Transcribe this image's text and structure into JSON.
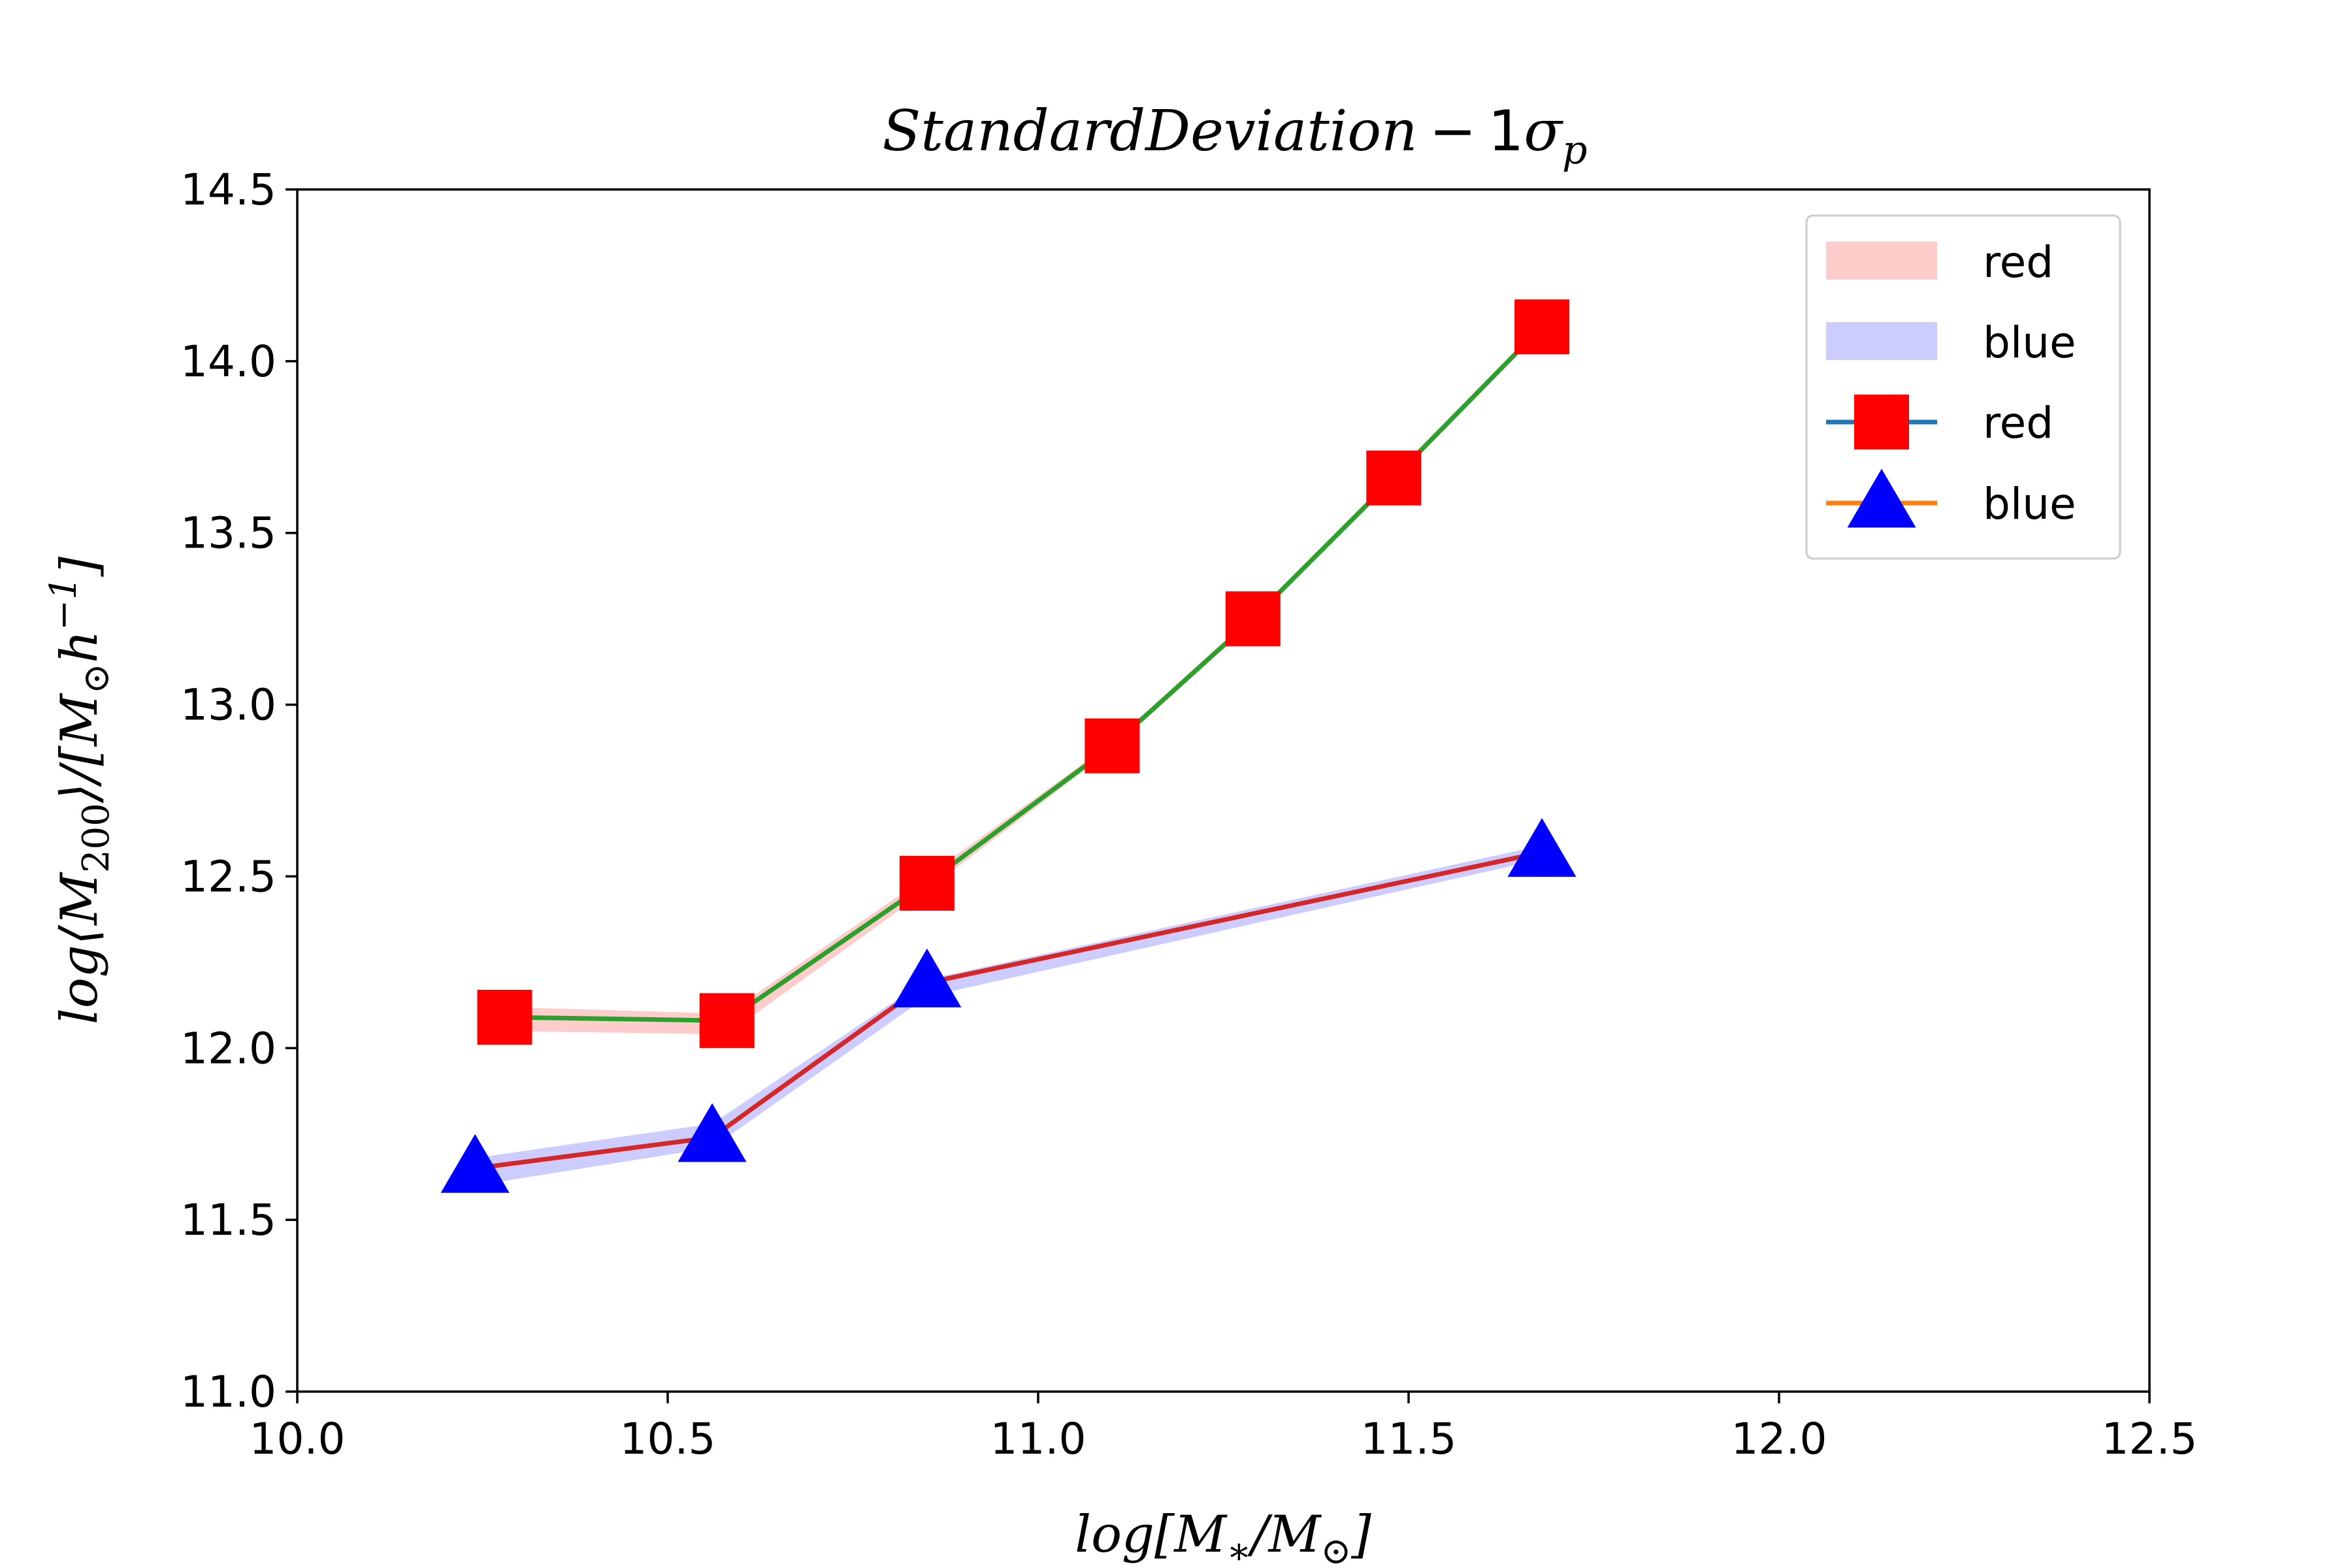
{
  "chart_data": {
    "type": "line",
    "title": "StandardDeviation - 1σ_p",
    "xlabel": "log[M_*/M_⊙]",
    "ylabel": "log⟨M_200⟩/[M_⊙h^-1]",
    "xlim": [
      10.0,
      12.5
    ],
    "ylim": [
      11.0,
      14.5
    ],
    "xticks": [
      "10.0",
      "10.5",
      "11.0",
      "11.5",
      "12.0",
      "12.5"
    ],
    "yticks": [
      "11.0",
      "11.5",
      "12.0",
      "12.5",
      "13.0",
      "13.5",
      "14.0",
      "14.5"
    ],
    "grid": false,
    "legend_position": "top-right",
    "bands": [
      {
        "name": "red",
        "color": "#ffcccc",
        "x": [
          10.28,
          10.58,
          10.85,
          11.1,
          11.29,
          11.48,
          11.68
        ],
        "lower": [
          12.05,
          12.04,
          12.46,
          12.87,
          13.24,
          13.65,
          14.09
        ],
        "upper": [
          12.12,
          12.1,
          12.5,
          12.89,
          13.26,
          13.67,
          14.11
        ]
      },
      {
        "name": "blue",
        "color": "#ccccff",
        "x": [
          10.24,
          10.56,
          10.85,
          11.68
        ],
        "lower": [
          11.6,
          11.71,
          12.15,
          12.55
        ],
        "upper": [
          11.68,
          11.78,
          12.2,
          12.59
        ]
      }
    ],
    "series": [
      {
        "name": "red",
        "legend_line_color": "#1f77b4",
        "line_color": "#2ca02c",
        "marker": "square",
        "marker_color": "#ff0000",
        "x": [
          10.28,
          10.58,
          10.85,
          11.1,
          11.29,
          11.48,
          11.68
        ],
        "y": [
          12.09,
          12.08,
          12.48,
          12.88,
          13.25,
          13.66,
          14.1
        ]
      },
      {
        "name": "blue",
        "legend_line_color": "#ff7f0e",
        "line_color": "#d62728",
        "marker": "triangle",
        "marker_color": "#0000ff",
        "x": [
          10.24,
          10.56,
          10.85,
          11.68
        ],
        "y": [
          11.65,
          11.74,
          12.19,
          12.57
        ]
      }
    ]
  }
}
